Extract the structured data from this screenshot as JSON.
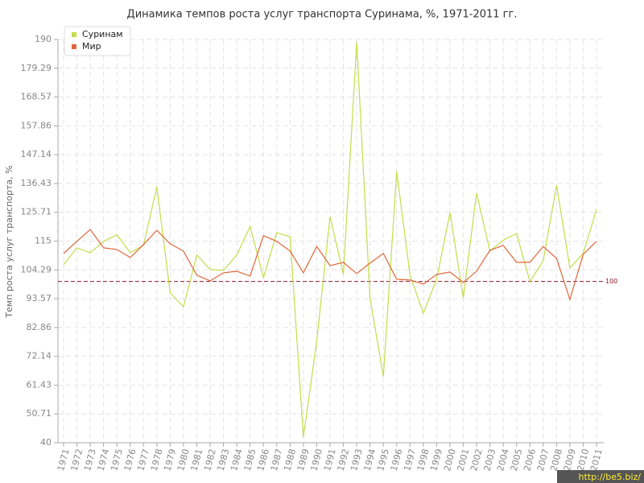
{
  "chart_data": {
    "type": "line",
    "title": "Динамика темпов роста услуг транспорта Суринама, %, 1971-2011 гг.",
    "y_label": "Темп роста услуг транспорта, %",
    "categories": [
      "1971",
      "1972",
      "1973",
      "1974",
      "1975",
      "1976",
      "1977",
      "1978",
      "1979",
      "1980",
      "1981",
      "1982",
      "1983",
      "1984",
      "1985",
      "1986",
      "1987",
      "1988",
      "1989",
      "1990",
      "1991",
      "1992",
      "1993",
      "1994",
      "1995",
      "1996",
      "1997",
      "1998",
      "1999",
      "2000",
      "2001",
      "2002",
      "2003",
      "2004",
      "2005",
      "2006",
      "2007",
      "2008",
      "2009",
      "2010",
      "2011"
    ],
    "series": [
      {
        "name": "Суринам",
        "color": "#c5dc4a",
        "values": [
          106.2,
          112.5,
          110.7,
          114.9,
          117.3,
          110.7,
          113.4,
          135.2,
          95.7,
          90.6,
          109.8,
          104.4,
          104.1,
          109.8,
          120.5,
          101.4,
          118.1,
          116.6,
          42.1,
          77.7,
          124.1,
          102.6,
          189.1,
          93.9,
          64.6,
          140.9,
          102.3,
          88.2,
          100.8,
          125.6,
          93.9,
          132.8,
          111.3,
          115.4,
          117.8,
          99.9,
          107.7,
          135.8,
          105,
          110.4,
          126.8
        ]
      },
      {
        "name": "Мир",
        "color": "#e0663a",
        "values": [
          110.4,
          114.9,
          119.3,
          112.5,
          111.9,
          108.9,
          113.7,
          119,
          114,
          111.3,
          102.3,
          100.2,
          103.2,
          103.8,
          102,
          117,
          114.9,
          111.3,
          103.2,
          113,
          105.9,
          107.1,
          102.9,
          106.8,
          110.4,
          100.8,
          100.5,
          99,
          102.6,
          103.5,
          99.6,
          103.8,
          111.6,
          113.4,
          107.1,
          107.1,
          113,
          108.6,
          93.3,
          110.1,
          114.9
        ]
      }
    ],
    "ylim": [
      40,
      190
    ],
    "yticks": [
      40,
      50.71,
      61.43,
      72.14,
      82.86,
      93.57,
      104.29,
      115,
      125.71,
      136.43,
      147.14,
      157.86,
      168.57,
      179.29,
      190
    ],
    "reference_line": 100,
    "grid": true,
    "legend": "top-left",
    "watermark": "http://be5.biz/"
  }
}
